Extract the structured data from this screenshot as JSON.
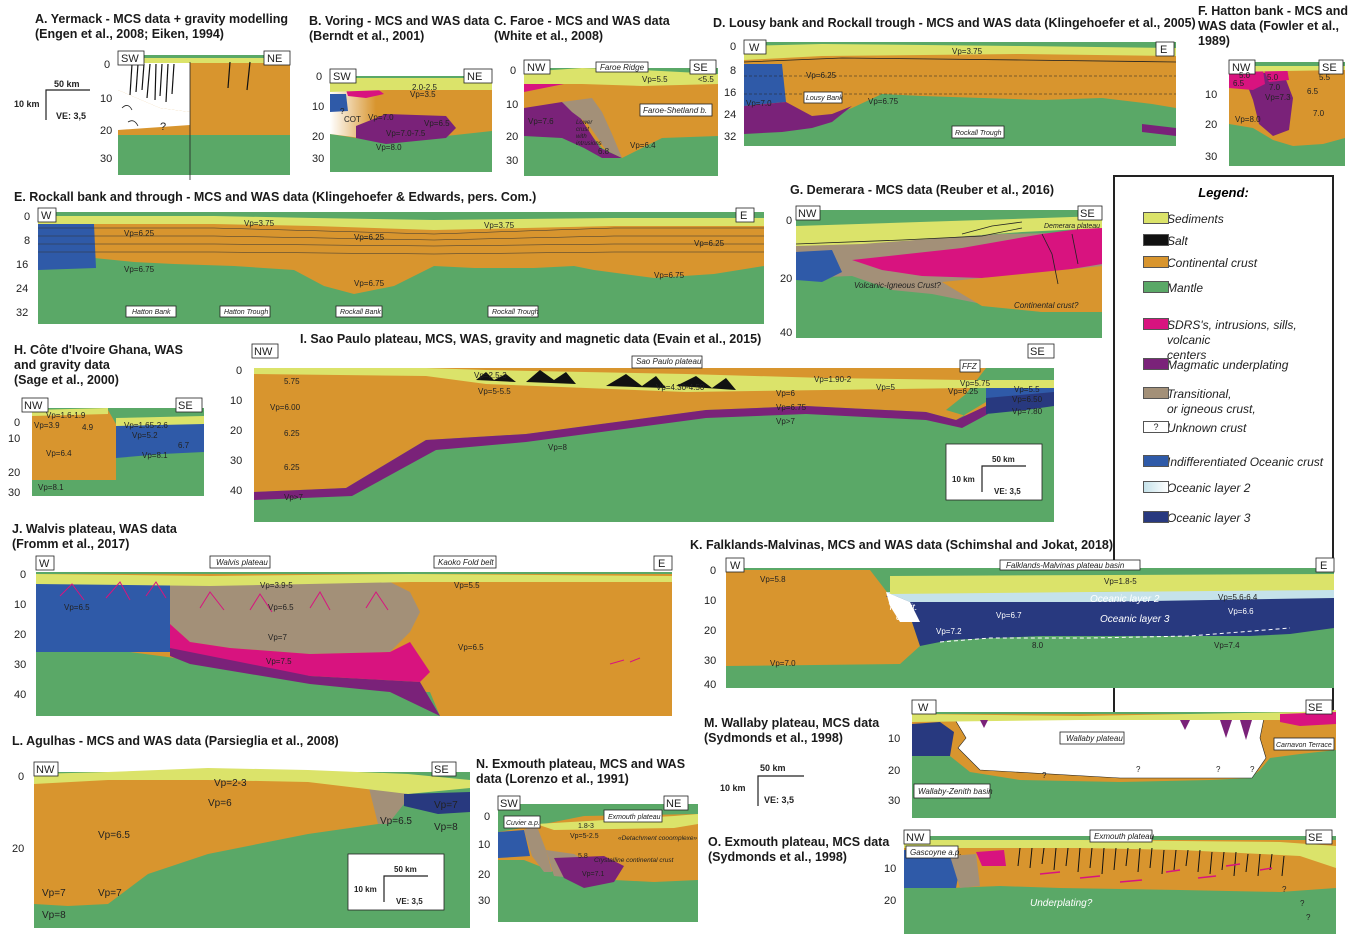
{
  "colors": {
    "sediments": "#dbe36a",
    "salt": "#111111",
    "continental": "#d8952e",
    "mantle": "#5aa867",
    "sdrs": "#d8137f",
    "underplating": "#7a2279",
    "transitional": "#a39078",
    "unknown": "#ffffff",
    "oceanic": "#2f5aa8",
    "layer2": "#c5e2ea",
    "layer3": "#28397f"
  },
  "titles": {
    "A": {
      "l1": "A. Yermack - MCS data + gravity modelling",
      "l2": "(Engen et al., 2008; Eiken, 1994)"
    },
    "B": {
      "l1": "B. Voring - MCS and WAS data",
      "l2": "(Berndt et al., 2001)"
    },
    "C": {
      "l1": "C. Faroe - MCS and WAS data",
      "l2": "(White et al., 2008)"
    },
    "D": {
      "l1": "D. Lousy bank and Rockall trough - MCS and WAS data (Klingehoefer et al., 2005)"
    },
    "F": {
      "l1": "F. Hatton bank - MCS and",
      "l2": "WAS data (Fowler et al.,",
      "l3": "1989)"
    },
    "E": {
      "l1": "E. Rockall bank and through - MCS and WAS data (Klingehoefer & Edwards, pers. Com.)"
    },
    "G": {
      "l1": "G. Demerara - MCS data (Reuber et al., 2016)"
    },
    "H": {
      "l1": "H. Côte d'Ivoire Ghana, WAS",
      "l2": "and gravity data",
      "l3": "(Sage et al., 2000)"
    },
    "I": {
      "l1": "I. Sao Paulo plateau, MCS, WAS, gravity and magnetic data (Evain et al., 2015)"
    },
    "J": {
      "l1": "J. Walvis plateau, WAS data",
      "l2": "(Fromm et al., 2017)"
    },
    "K": {
      "l1": "K. Falklands-Malvinas, MCS and WAS data (Schimshal and Jokat, 2018)"
    },
    "L": {
      "l1": "L. Agulhas - MCS and WAS data (Parsieglia et al., 2008)"
    },
    "M": {
      "l1": "M. Wallaby plateau, MCS data",
      "l2": "(Sydmonds et al., 1998)"
    },
    "N": {
      "l1": "N. Exmouth plateau, MCS and WAS",
      "l2": "data (Lorenzo et al., 1991)"
    },
    "O": {
      "l1": "O. Exmouth plateau, MCS data",
      "l2": "(Sydmonds et al., 1998)"
    }
  },
  "legend": {
    "title": "Legend:",
    "items": [
      {
        "label": "Sediments"
      },
      {
        "label": "Salt"
      },
      {
        "label": "Continental crust"
      },
      {
        "label": "Mantle"
      },
      {
        "label": "SDRS's, intrusions, sills, volcanic",
        "label2": "centers"
      },
      {
        "label": "Magmatic underplating"
      },
      {
        "label": "Transitional,",
        "label2": "or igneous crust,"
      },
      {
        "label": "Unknown crust",
        "symbol": "?"
      },
      {
        "label": "Indifferentiated Oceanic crust"
      },
      {
        "label": "Oceanic layer 2"
      },
      {
        "label": "Oceanic layer 3"
      }
    ]
  },
  "scales": {
    "s50": "50 km",
    "s10": "10 km",
    "ve": "VE: 3,5"
  },
  "A": {
    "dir_l": "SW",
    "dir_r": "NE",
    "q": "?",
    "ticks": [
      "0",
      "10",
      "20",
      "30"
    ]
  },
  "B": {
    "dir_l": "SW",
    "dir_r": "NE",
    "ticks": [
      "0",
      "10",
      "20",
      "30"
    ],
    "labels": {
      "v1": "2.0-2.5",
      "v2": "Vp=3.5",
      "v3": "Vp=7.0",
      "v4": "Vp=6.5",
      "v5": "Vp=7.0-7.5",
      "v6": "Vp=8.0",
      "cot": "COT",
      "q": "?"
    }
  },
  "C": {
    "dir_l": "NW",
    "dir_r": "SE",
    "ticks": [
      "0",
      "10",
      "20",
      "30"
    ],
    "labels": {
      "ridge": "Faroe Ridge",
      "v1": "Vp=5.5",
      "v2": "<5.5",
      "basin": "Faroe-Shetland b.",
      "v3": "Vp=7.6",
      "lower1": "Lower",
      "lower2": "crust",
      "lower3": "with",
      "lower4": "intrusions",
      "v4": "6.8",
      "v5": "Vp=6.4"
    }
  },
  "D": {
    "dir_l": "W",
    "dir_r": "E",
    "ticks": [
      "0",
      "8",
      "16",
      "24",
      "32"
    ],
    "labels": {
      "v1": "Vp=3.75",
      "v2": "Vp=6.25",
      "v3": "Vp=7.0",
      "v4": "Vp=6.75",
      "lousy": "Lousy Bank",
      "rockall": "Rockall Trough"
    }
  },
  "F": {
    "dir_l": "NW",
    "dir_r": "SE",
    "ticks": [
      "10",
      "20",
      "30"
    ],
    "labels": {
      "v1": "5.0",
      "v2": "7.0",
      "v3": "6.5",
      "v4": "Vp=7.3",
      "v5": "5.0",
      "v6": "5.5",
      "v7": "6.5",
      "v8": "Vp=8.0",
      "v9": "7.0"
    }
  },
  "E": {
    "dir_l": "W",
    "dir_r": "E",
    "ticks": [
      "0",
      "8",
      "16",
      "24",
      "32"
    ],
    "labels": {
      "v1": "Vp=3.75",
      "v2": "Vp=6.25",
      "v3": "Vp=6.25",
      "v4": "Vp=3.75",
      "v5": "Vp=6.25",
      "v6": "Vp=6.75",
      "v7": "Vp=6.75",
      "v8": "Vp=6.75",
      "hb": "Hatton Bank",
      "ht": "Hatton Trough",
      "rb": "Rockall Bank",
      "rt": "Rockall Trough"
    }
  },
  "G": {
    "dir_l": "NW",
    "dir_r": "SE",
    "ticks": [
      "0",
      "20",
      "40"
    ],
    "labels": {
      "dp": "Demerara plateau",
      "vi": "Volcanic-Igneous Crust?",
      "cc": "Continental crust?"
    }
  },
  "H": {
    "dir_l": "NW",
    "dir_r": "SE",
    "ticks": [
      "0",
      "10",
      "20",
      "30"
    ],
    "labels": {
      "v1": "Vp=1.6-1.9",
      "v2": "Vp=3.9",
      "v3": "4.9",
      "v4": "Vp=1.65-2.6",
      "v5": "Vp=5.2",
      "v6": "6.7",
      "v7": "Vp=6.4",
      "v8": "Vp=8.1",
      "v9": "Vp=8.1"
    }
  },
  "I": {
    "dir_l": "NW",
    "dir_r": "SE",
    "ticks": [
      "0",
      "10",
      "20",
      "30",
      "40"
    ],
    "labels": {
      "sp": "Sao Paulo plateau",
      "ffz": "FFZ",
      "v1": "5.75",
      "v2": "Vp=2.5-3",
      "v3": "Vp=5-5.5",
      "v4": "Vp=4.30-4.50",
      "v5": "Vp=1.90-2",
      "v6": "Vp=6",
      "v7": "Vp=5",
      "v8": "Vp=5.75",
      "v9": "Vp=6.25",
      "v10": "Vp=5.5",
      "v11": "Vp=6.50",
      "v12": "Vp=7.80",
      "v13": "Vp=6.00",
      "v14": "Vp=6.75",
      "v15": "Vp>7",
      "v16": "6.25",
      "v17": "6.25",
      "v18": "Vp=8",
      "v19": "Vp>7"
    }
  },
  "J": {
    "dir_l": "W",
    "dir_r": "E",
    "ticks": [
      "0",
      "10",
      "20",
      "30",
      "40"
    ],
    "labels": {
      "wp": "Walvis plateau",
      "kfb": "Kaoko Fold belt",
      "v1": "Vp=3.9-5",
      "v2": "Vp=6.5",
      "v3": "Vp=6.5",
      "v4": "Vp=7",
      "v5": "Vp=7.5",
      "v6": "Vp=5.5",
      "v7": "Vp=6.5"
    }
  },
  "K": {
    "dir_l": "W",
    "dir_r": "E",
    "ticks": [
      "0",
      "10",
      "20",
      "30",
      "40"
    ],
    "labels": {
      "fmb": "Falklands-Malvinas plateau basin",
      "v1": "Vp=5.8",
      "v2": "Vp=1.8-5",
      "ol2": "Oceanic layer 2",
      "v3": "Vp=5.6-6.4",
      "tr1": "Transit.",
      "tr2": "crust",
      "v4": "Vp=6.7",
      "ol3": "Oceanic layer 3",
      "v5": "Vp=6.6",
      "v6": "Vp=7.2",
      "v7": "8.0",
      "v8": "Vp=7.4",
      "v9": "Vp=7.0"
    }
  },
  "L": {
    "dir_l": "NW",
    "dir_r": "SE",
    "ticks": [
      "0",
      "20"
    ],
    "labels": {
      "v1": "Vp=2-3",
      "v2": "Vp=6",
      "v3": "Vp=6.5",
      "v4": "Vp=6.5",
      "v5": "Vp=7",
      "v6": "Vp=7",
      "v7": "Vp=7",
      "v8": "Vp=8",
      "v9": "Vp=8"
    }
  },
  "M": {
    "dir_l": "W",
    "dir_r": "SE",
    "ticks": [
      "10",
      "20",
      "30"
    ],
    "labels": {
      "wp": "Wallaby plateau",
      "ct": "Carnavon Terrace",
      "wz": "Wallaby-Zenith basin",
      "q": "?"
    }
  },
  "N": {
    "dir_l": "SW",
    "dir_r": "NE",
    "ticks": [
      "0",
      "10",
      "20",
      "30"
    ],
    "labels": {
      "cap": "Cuvier a.p.",
      "ep": "Exmouth plateau",
      "v1": "1.8-3",
      "v2": "Vp=5-2.5",
      "dc": "«Detachment cooomplexe»",
      "v3": "5.8",
      "ccc": "Crystalline continental crust",
      "v4": "Vp=7.1"
    }
  },
  "O": {
    "dir_l": "NW",
    "dir_r": "SE",
    "ticks": [
      "10",
      "20"
    ],
    "labels": {
      "ga": "Gascoyne a.p.",
      "ep": "Exmouth plateau",
      "up": "Underplating?",
      "q": "?"
    }
  }
}
